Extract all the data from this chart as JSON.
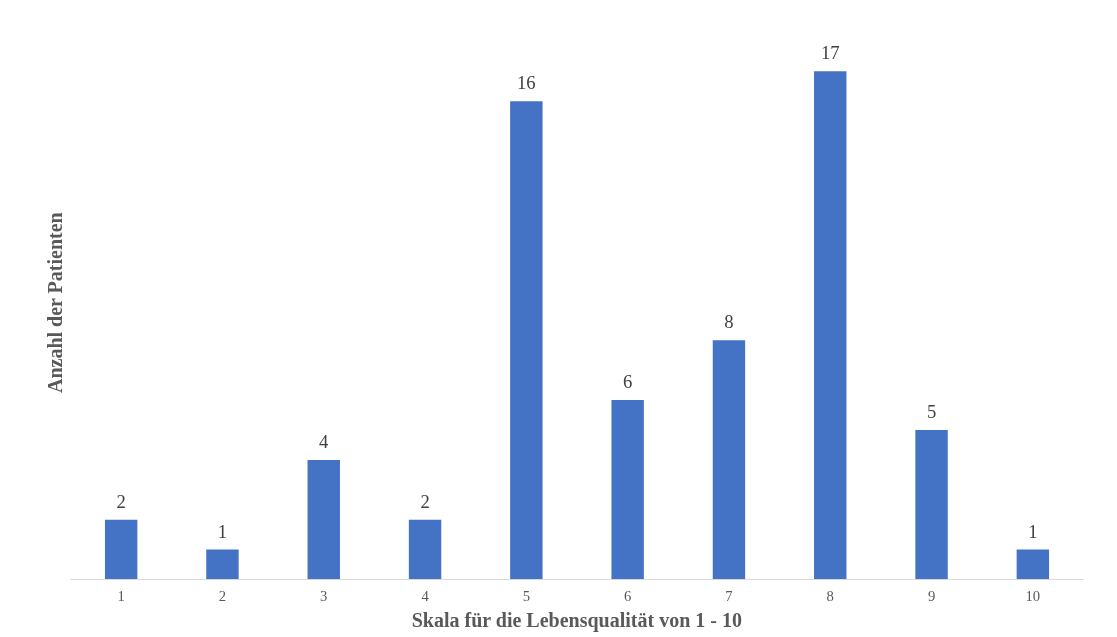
{
  "chart_data": {
    "type": "bar",
    "xlabel": "Skala für die Lebensqualität von 1 - 10",
    "ylabel": "Anzahl der Patienten",
    "categories": [
      "1",
      "2",
      "3",
      "4",
      "5",
      "6",
      "7",
      "8",
      "9",
      "10"
    ],
    "values": [
      2,
      1,
      4,
      2,
      16,
      6,
      8,
      17,
      5,
      1
    ],
    "color": "#4472c4",
    "data_labels": true
  }
}
